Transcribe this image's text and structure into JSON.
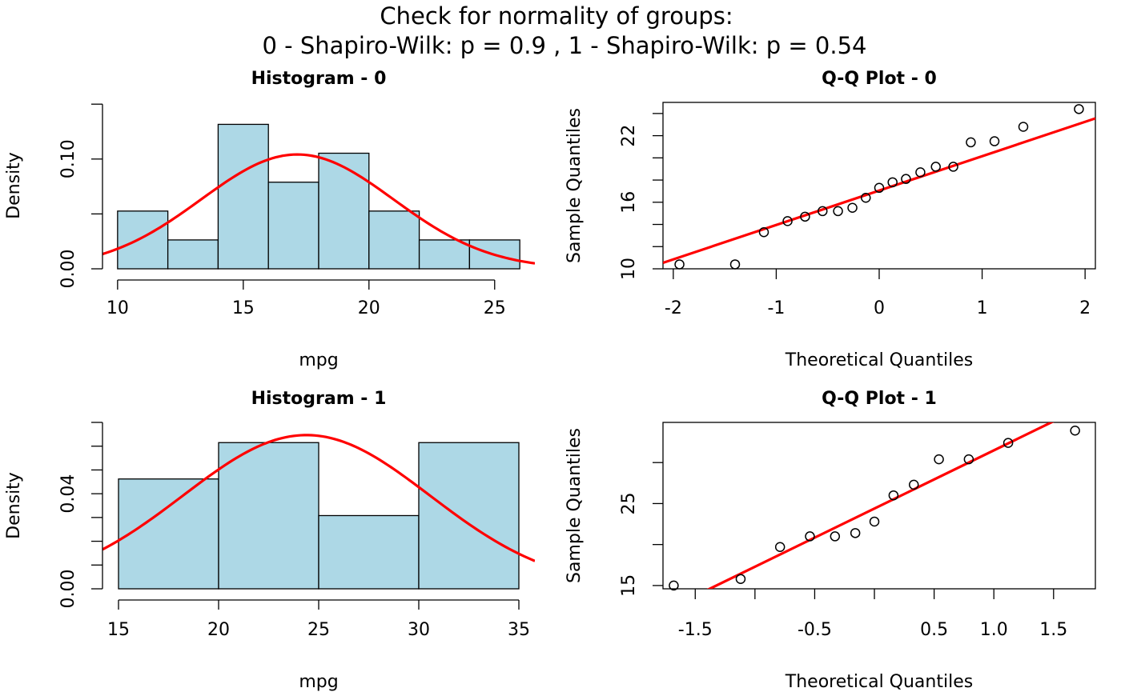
{
  "figure": {
    "title_line1": "Check for normality of groups:",
    "title_line2": "0  - Shapiro-Wilk: p =  0.9 ,  1  - Shapiro-Wilk: p =  0.54"
  },
  "colors": {
    "bar_fill": "#add8e6",
    "curve": "#ff0000",
    "points": "#000000"
  },
  "chart_data": [
    {
      "type": "bar",
      "subtype": "histogram",
      "title": "Histogram - 0",
      "xlabel": "mpg",
      "ylabel": "Density",
      "bins": [
        [
          10,
          12
        ],
        [
          12,
          14
        ],
        [
          14,
          16
        ],
        [
          16,
          18
        ],
        [
          18,
          20
        ],
        [
          20,
          22
        ],
        [
          22,
          24
        ],
        [
          24,
          26
        ]
      ],
      "values": [
        0.0526,
        0.0263,
        0.1316,
        0.0789,
        0.1053,
        0.0526,
        0.0263,
        0.0263
      ],
      "xlim": [
        9.4,
        26.6
      ],
      "ylim": [
        0,
        0.1516
      ],
      "xticks": [
        10,
        15,
        20,
        25
      ],
      "xtick_labels": [
        "10",
        "15",
        "20",
        "25"
      ],
      "yticks": [
        0,
        0.05,
        0.1,
        0.15
      ],
      "ytick_labels": [
        "0.00",
        "",
        "0.10",
        ""
      ],
      "normal_curve": {
        "mean": 17.15,
        "sd": 3.83
      }
    },
    {
      "type": "scatter",
      "subtype": "qq",
      "title": "Q-Q Plot - 0",
      "xlabel": "Theoretical Quantiles",
      "ylabel": "Sample Quantiles",
      "xlim": [
        -2.1,
        2.1
      ],
      "ylim": [
        10,
        25
      ],
      "xticks": [
        -2,
        -1,
        0,
        1,
        2
      ],
      "xtick_labels": [
        "-2",
        "-1",
        "0",
        "1",
        "2"
      ],
      "yticks": [
        10,
        12,
        14,
        16,
        18,
        20,
        22,
        24
      ],
      "ytick_labels": [
        "10",
        "",
        "",
        "16",
        "",
        "",
        "22",
        ""
      ],
      "x": [
        -1.94,
        -1.4,
        -1.12,
        -0.89,
        -0.72,
        -0.55,
        -0.4,
        -0.26,
        -0.13,
        0.0,
        0.13,
        0.26,
        0.4,
        0.55,
        0.72,
        0.89,
        1.12,
        1.4,
        1.94
      ],
      "y": [
        10.4,
        10.4,
        13.3,
        14.3,
        14.7,
        15.2,
        15.2,
        15.5,
        16.4,
        17.3,
        17.8,
        18.1,
        18.7,
        19.2,
        19.2,
        21.4,
        21.5,
        22.8,
        24.4
      ],
      "ref_line": {
        "intercept": 17.05,
        "slope": 3.1
      }
    },
    {
      "type": "bar",
      "subtype": "histogram",
      "title": "Histogram - 1",
      "xlabel": "mpg",
      "ylabel": "Density",
      "bins": [
        [
          15,
          20
        ],
        [
          20,
          25
        ],
        [
          25,
          30
        ],
        [
          30,
          35
        ]
      ],
      "values": [
        0.0462,
        0.0615,
        0.0308,
        0.0615
      ],
      "xlim": [
        14.2,
        35.8
      ],
      "ylim": [
        0,
        0.07
      ],
      "xticks": [
        15,
        20,
        25,
        30,
        35
      ],
      "xtick_labels": [
        "15",
        "20",
        "25",
        "30",
        "35"
      ],
      "yticks": [
        0,
        0.01,
        0.02,
        0.03,
        0.04,
        0.05,
        0.06,
        0.07
      ],
      "ytick_labels": [
        "0.00",
        "",
        "",
        "",
        "0.04",
        "",
        "",
        ""
      ],
      "normal_curve": {
        "mean": 24.39,
        "sd": 6.17
      }
    },
    {
      "type": "scatter",
      "subtype": "qq",
      "title": "Q-Q Plot - 1",
      "xlabel": "Theoretical Quantiles",
      "ylabel": "Sample Quantiles",
      "xlim": [
        -1.77,
        1.85
      ],
      "ylim": [
        14.6,
        34.9
      ],
      "xticks": [
        -1.5,
        -1.0,
        -0.5,
        0.0,
        0.5,
        1.0,
        1.5
      ],
      "xtick_labels": [
        "-1.5",
        "",
        "-0.5",
        "",
        "0.5",
        "1.0",
        "1.5"
      ],
      "yticks": [
        15,
        20,
        25,
        30
      ],
      "ytick_labels": [
        "15",
        "",
        "25",
        ""
      ],
      "x": [
        -1.68,
        -1.12,
        -0.79,
        -0.54,
        -0.33,
        -0.16,
        0.0,
        0.16,
        0.33,
        0.54,
        0.79,
        1.12,
        1.68
      ],
      "y": [
        15.0,
        15.8,
        19.7,
        21.0,
        21.0,
        21.4,
        22.8,
        26.0,
        27.3,
        30.4,
        30.4,
        32.4,
        33.9
      ],
      "ref_line": {
        "intercept": 24.39,
        "slope": 7.1
      }
    }
  ]
}
